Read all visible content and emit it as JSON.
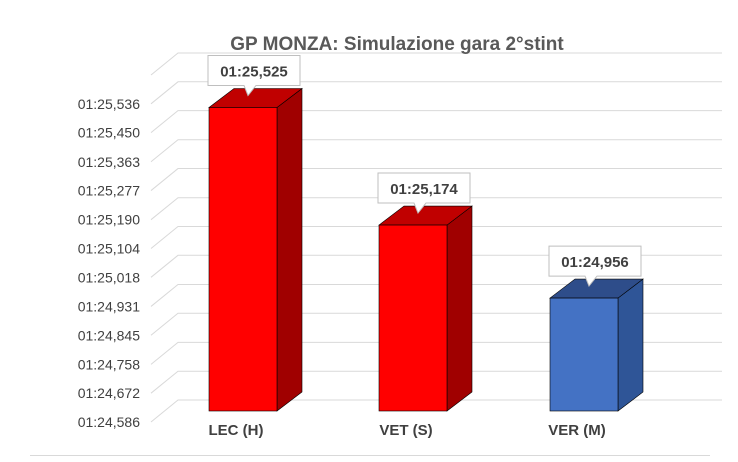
{
  "chart_data": {
    "type": "bar",
    "title": "GP MONZA: Simulazione gara 2°stint",
    "categories": [
      "LEC (H)",
      "VET (S)",
      "VER (M)"
    ],
    "values": [
      85.525,
      85.174,
      84.956
    ],
    "data_labels": [
      "01:25,525",
      "01:25,174",
      "01:24,956"
    ],
    "bar_colors": [
      "#ff0000",
      "#ff0000",
      "#4472c4"
    ],
    "bar_side_colors": [
      "#a00000",
      "#a00000",
      "#2f5597"
    ],
    "bar_top_colors": [
      "#c00000",
      "#c00000",
      "#2e4d8a"
    ],
    "y_ticks": [
      84.586,
      84.672,
      84.758,
      84.845,
      84.931,
      85.018,
      85.104,
      85.19,
      85.277,
      85.363,
      85.45,
      85.536
    ],
    "y_tick_labels": [
      "01:24,586",
      "01:24,672",
      "01:24,758",
      "01:24,845",
      "01:24,931",
      "01:25,018",
      "01:25,104",
      "01:25,190",
      "01:25,277",
      "01:25,363",
      "01:25,450",
      "01:25,536"
    ],
    "ylim": [
      84.586,
      85.622
    ],
    "grid": true,
    "three_d": true,
    "xlabel": "",
    "ylabel": ""
  }
}
